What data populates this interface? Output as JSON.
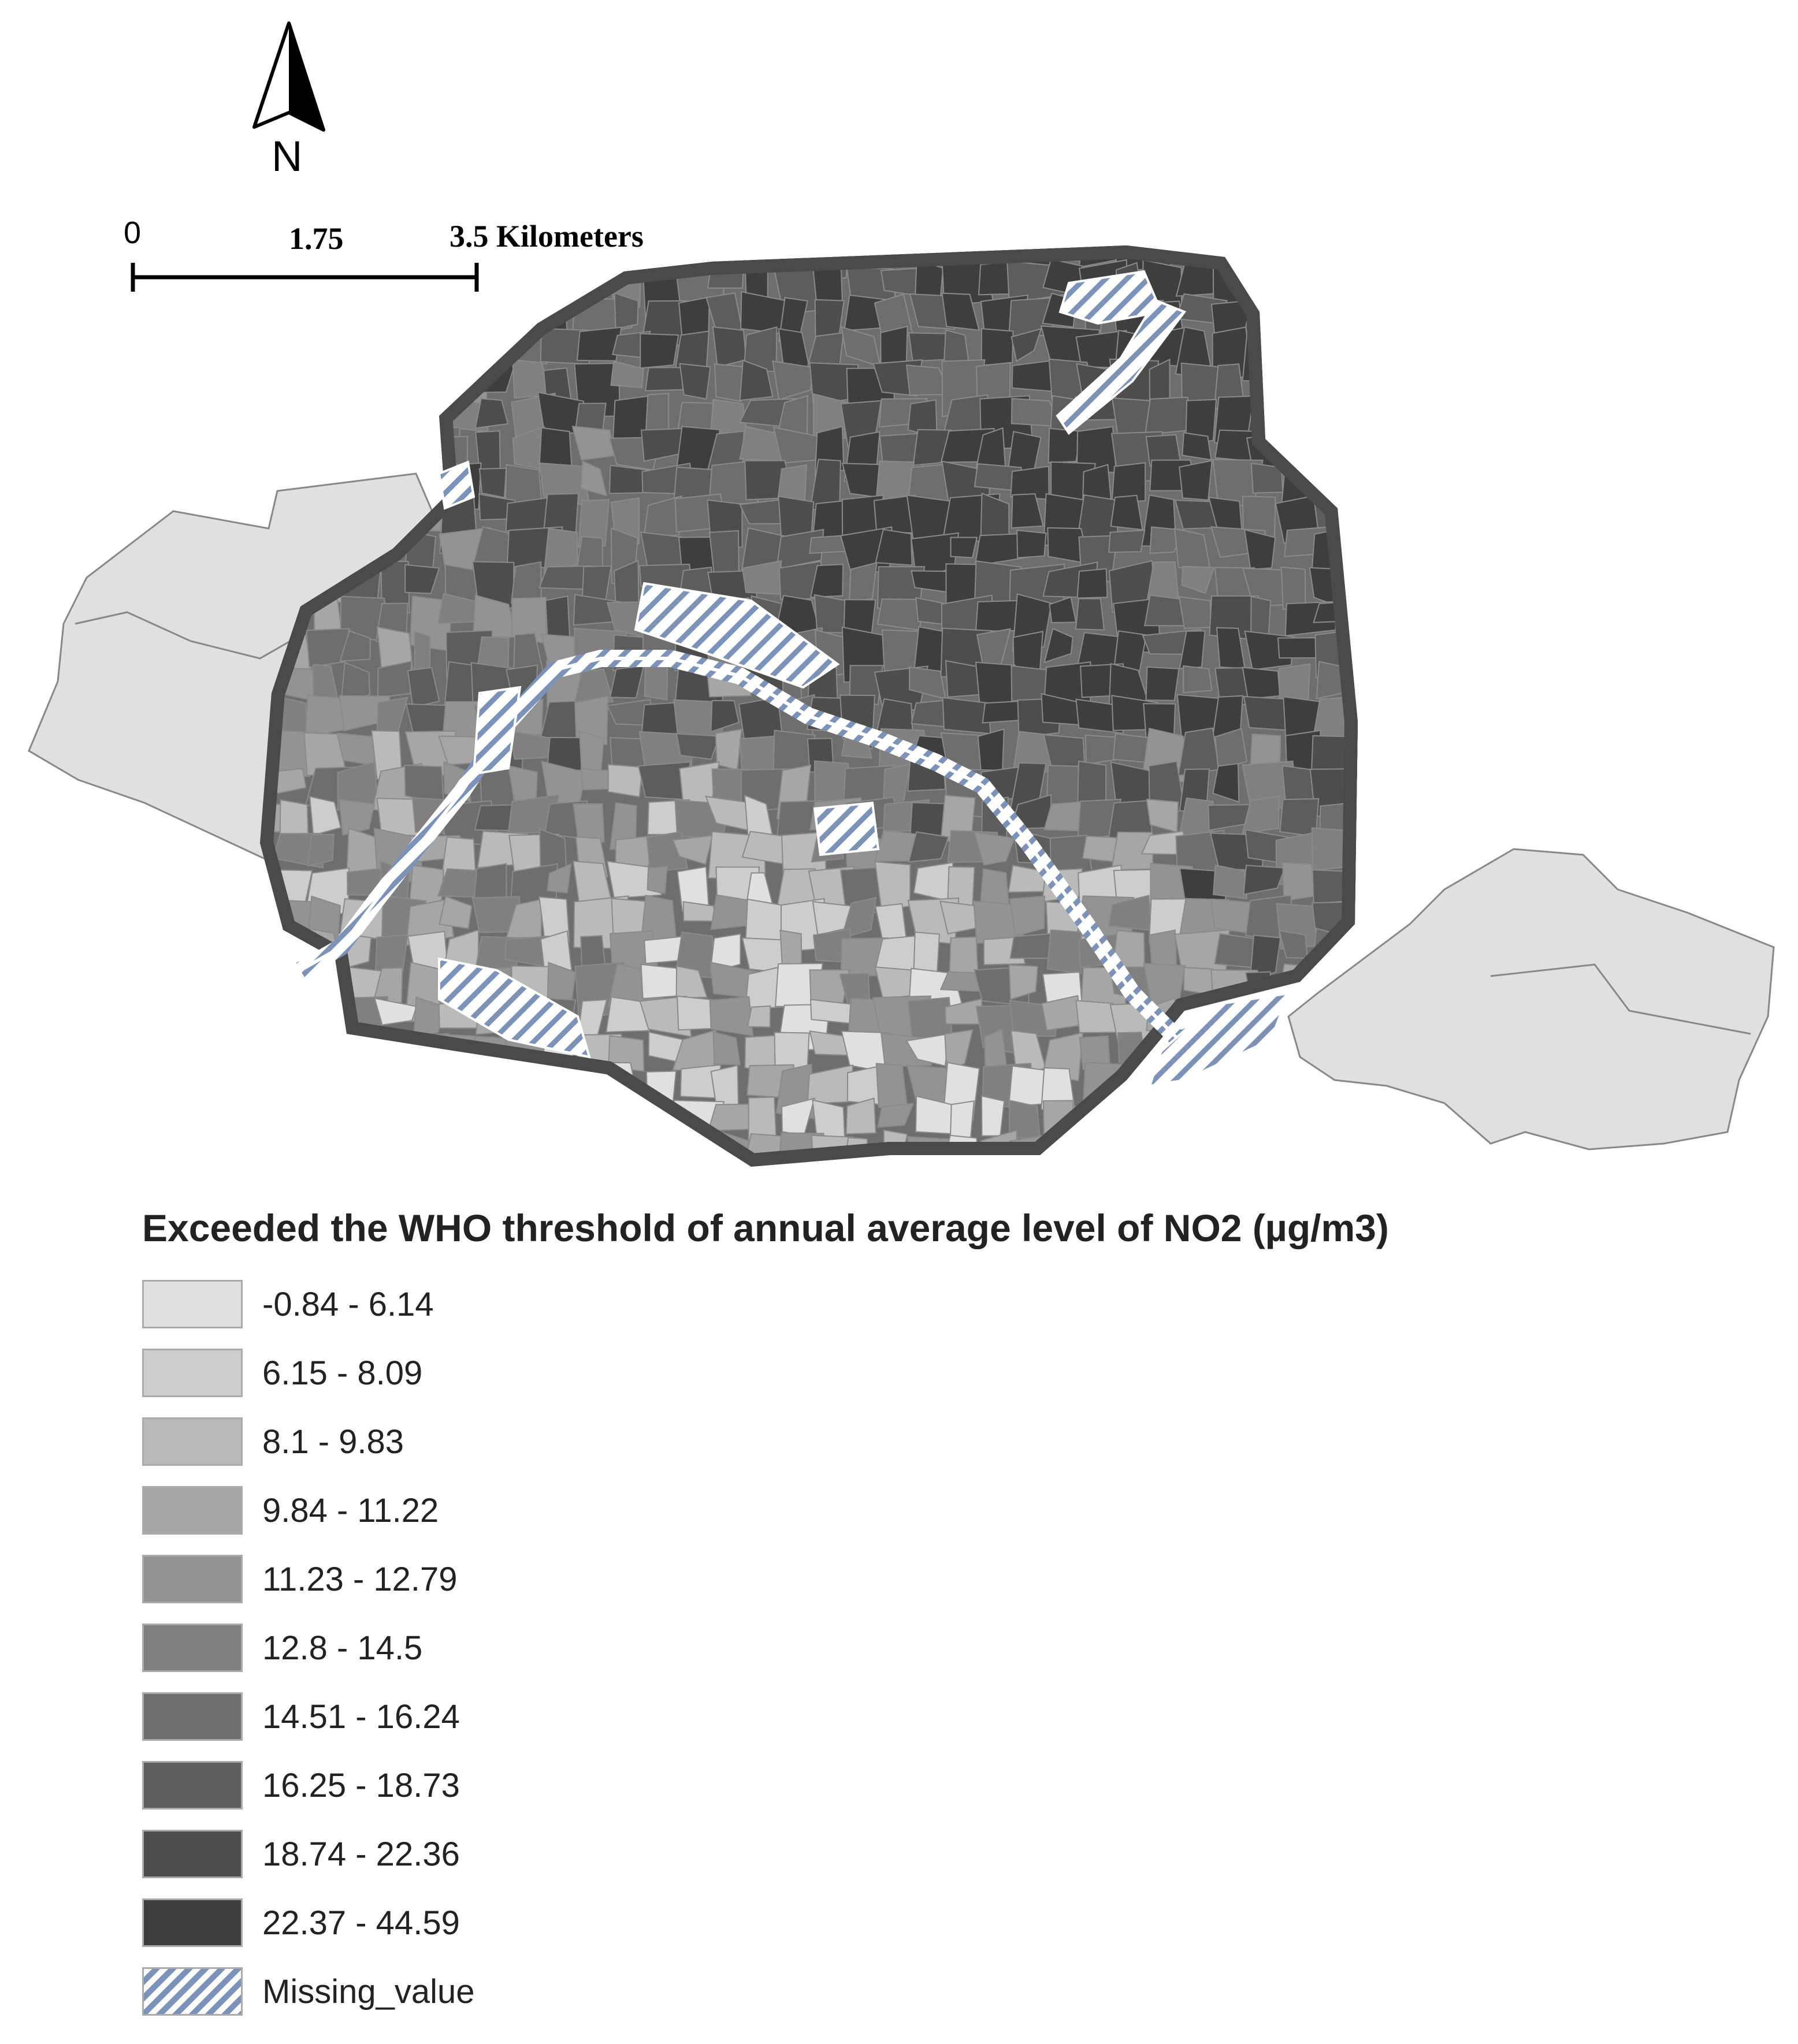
{
  "north_arrow": {
    "label": "N",
    "icon": "north-arrow-icon"
  },
  "scale_bar": {
    "labels": [
      "0",
      "1.75",
      "3.5 Kilometers"
    ]
  },
  "legend": {
    "title": "Exceeded the WHO threshold of annual average level of NO2 (µg/m3)",
    "classes": [
      {
        "label": "-0.84 - 6.14",
        "color": "#e0e0e0"
      },
      {
        "label": "6.15 - 8.09",
        "color": "#cdcdcd"
      },
      {
        "label": "8.1 - 9.83",
        "color": "#bababa"
      },
      {
        "label": "9.84 - 11.22",
        "color": "#a6a6a6"
      },
      {
        "label": "11.23 - 12.79",
        "color": "#939393"
      },
      {
        "label": "12.8 - 14.5",
        "color": "#808080"
      },
      {
        "label": "14.51 - 16.24",
        "color": "#6e6e6e"
      },
      {
        "label": "16.25 - 18.73",
        "color": "#5d5d5d"
      },
      {
        "label": "18.74 - 22.36",
        "color": "#4d4d4d"
      },
      {
        "label": "22.37 - 44.59",
        "color": "#3e3e3e"
      }
    ],
    "missing": {
      "label": "Missing_value",
      "stripe_color": "#7c92b8"
    }
  }
}
